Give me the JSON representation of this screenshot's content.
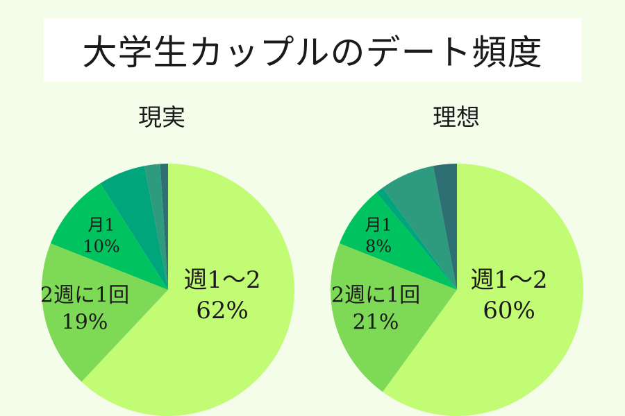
{
  "title": "大学生カップルのデート頻度",
  "chart_data": [
    {
      "type": "pie",
      "title": "現実",
      "slices": [
        {
          "label": "週1～2",
          "percent_label": "62%",
          "value": 62,
          "color": "#c2fb74"
        },
        {
          "label": "2週に1回",
          "percent_label": "19%",
          "value": 19,
          "color": "#7ed957"
        },
        {
          "label": "月1",
          "percent_label": "10%",
          "value": 10,
          "color": "#00c35f"
        },
        {
          "label": "",
          "percent_label": "",
          "value": 6,
          "color": "#00a57b"
        },
        {
          "label": "",
          "percent_label": "",
          "value": 2,
          "color": "#2e9a7e"
        },
        {
          "label": "",
          "percent_label": "",
          "value": 1,
          "color": "#2d6f73"
        }
      ]
    },
    {
      "type": "pie",
      "title": "理想",
      "slices": [
        {
          "label": "週1～2",
          "percent_label": "60%",
          "value": 60,
          "color": "#c2fb74"
        },
        {
          "label": "2週に1回",
          "percent_label": "21%",
          "value": 21,
          "color": "#7ed957"
        },
        {
          "label": "月1",
          "percent_label": "8%",
          "value": 8,
          "color": "#00c35f"
        },
        {
          "label": "",
          "percent_label": "",
          "value": 1,
          "color": "#00a57b"
        },
        {
          "label": "",
          "percent_label": "",
          "value": 7,
          "color": "#2e9a7e"
        },
        {
          "label": "",
          "percent_label": "",
          "value": 3,
          "color": "#2d6f73"
        }
      ]
    }
  ]
}
